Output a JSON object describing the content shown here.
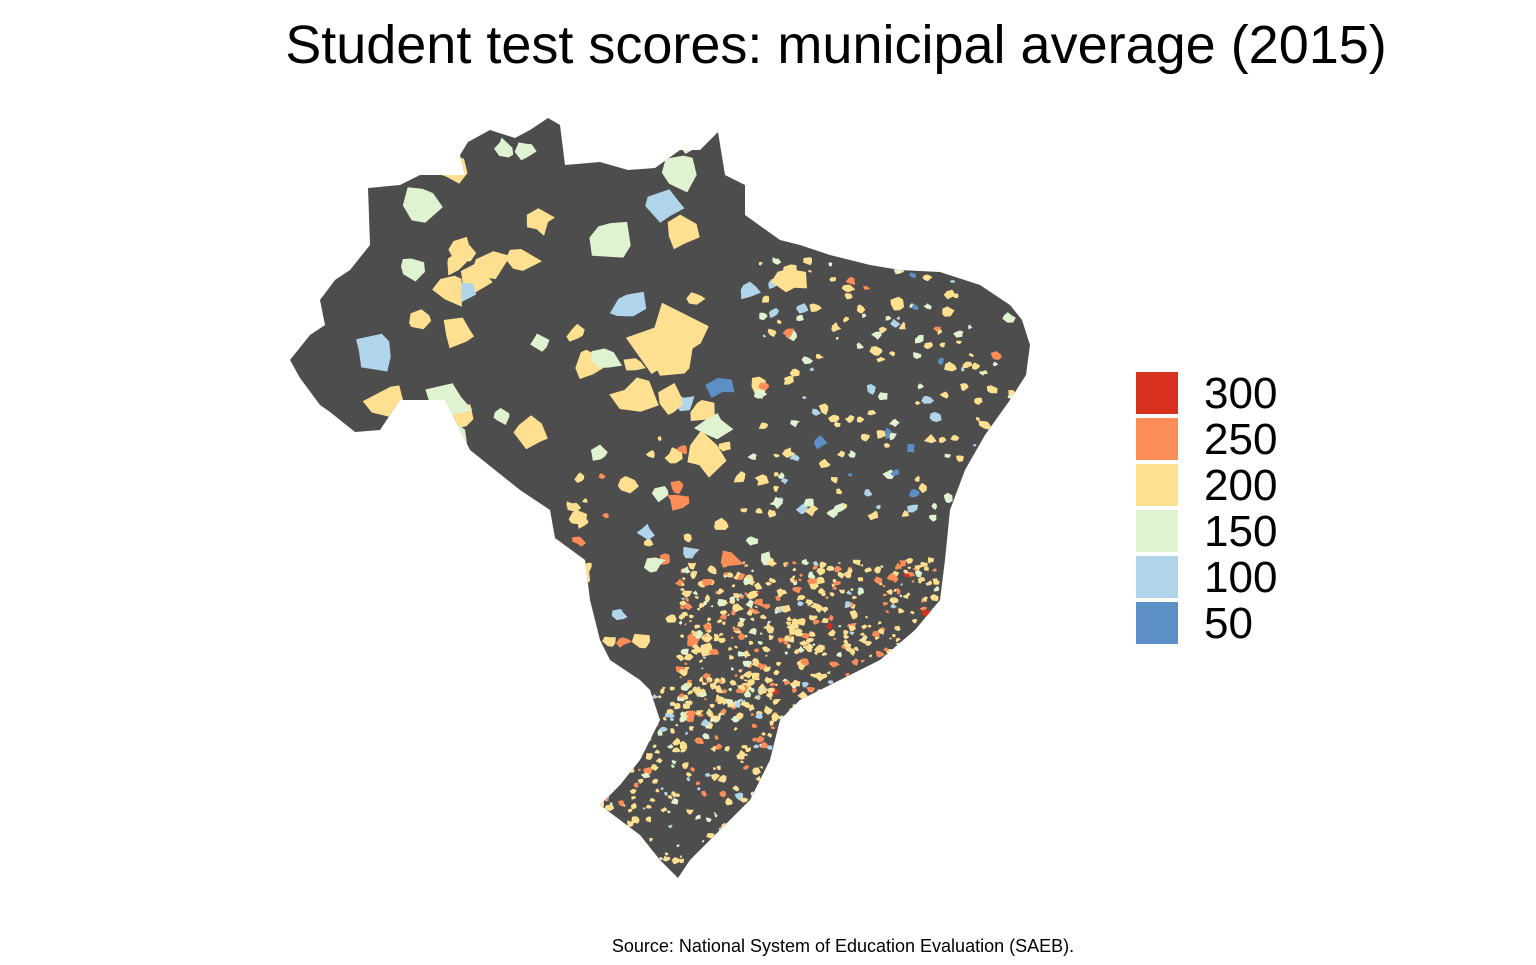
{
  "title": "Student test scores: municipal average (2015)",
  "caption": "Source: National System of Education Evaluation (SAEB).",
  "map": {
    "region": "Brazil",
    "unit": "municipality",
    "missing_color": "#4d4d4d"
  },
  "legend": {
    "items": [
      {
        "label": "300",
        "color": "#d7301f"
      },
      {
        "label": "250",
        "color": "#fc8d59"
      },
      {
        "label": "200",
        "color": "#fee090"
      },
      {
        "label": "150",
        "color": "#e0f3d0"
      },
      {
        "label": "100",
        "color": "#b0d5ea"
      },
      {
        "label": "50",
        "color": "#5b8fc6"
      }
    ]
  }
}
